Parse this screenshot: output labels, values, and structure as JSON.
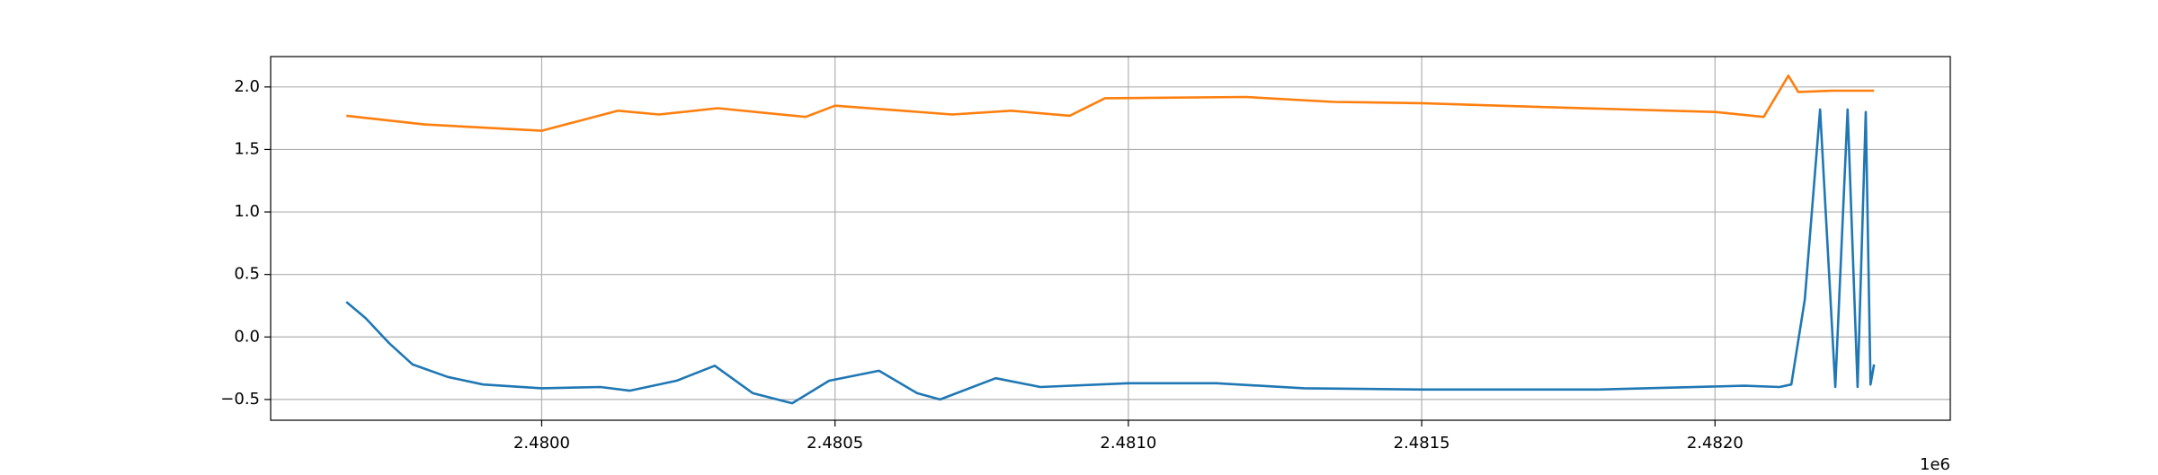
{
  "chart_data": {
    "type": "line",
    "x_offset_label": "1e6",
    "xlim": [
      2479538,
      2482401
    ],
    "xticks": [
      {
        "value": 2480000,
        "label": "2.4800"
      },
      {
        "value": 2480500,
        "label": "2.4805"
      },
      {
        "value": 2481000,
        "label": "2.4810"
      },
      {
        "value": 2481500,
        "label": "2.4815"
      },
      {
        "value": 2482000,
        "label": "2.4820"
      }
    ],
    "ylim": [
      -0.666,
      2.243
    ],
    "yticks": [
      {
        "value": -0.5,
        "label": "−0.5"
      },
      {
        "value": 0,
        "label": "0.0"
      },
      0.5,
      {
        "value": 1,
        "label": "1.0"
      },
      1.5,
      {
        "value": 2,
        "label": "2.0"
      }
    ],
    "grid": true,
    "series": [
      {
        "color": "#1f77b4",
        "x": [
          2479667,
          2479700,
          2479740,
          2479780,
          2479840,
          2479900,
          2480000,
          2480100,
          2480150,
          2480230,
          2480295,
          2480360,
          2480427,
          2480490,
          2480575,
          2480640,
          2480679,
          2480774,
          2480850,
          2481000,
          2481150,
          2481300,
          2481500,
          2481800,
          2482050,
          2482110,
          2482130,
          2482153,
          2482179,
          2482205,
          2482226,
          2482243,
          2482257,
          2482265,
          2482271
        ],
        "values": [
          0.28,
          0.15,
          -0.05,
          -0.22,
          -0.32,
          -0.38,
          -0.41,
          -0.4,
          -0.43,
          -0.35,
          -0.23,
          -0.45,
          -0.53,
          -0.35,
          -0.27,
          -0.45,
          -0.5,
          -0.33,
          -0.4,
          -0.37,
          -0.37,
          -0.41,
          -0.42,
          -0.42,
          -0.39,
          -0.4,
          -0.38,
          0.3,
          1.82,
          -0.4,
          1.82,
          -0.4,
          1.8,
          -0.38,
          -0.22
        ]
      },
      {
        "color": "#ff7f0e",
        "x": [
          2479667,
          2479800,
          2480000,
          2480130,
          2480200,
          2480300,
          2480450,
          2480500,
          2480700,
          2480800,
          2480900,
          2480960,
          2481200,
          2481350,
          2481500,
          2481700,
          2482000,
          2482083,
          2482125,
          2482142,
          2482200,
          2482271
        ],
        "values": [
          1.77,
          1.7,
          1.65,
          1.81,
          1.78,
          1.83,
          1.76,
          1.85,
          1.78,
          1.81,
          1.77,
          1.91,
          1.92,
          1.88,
          1.87,
          1.84,
          1.8,
          1.76,
          2.09,
          1.96,
          1.97,
          1.97
        ]
      }
    ]
  }
}
